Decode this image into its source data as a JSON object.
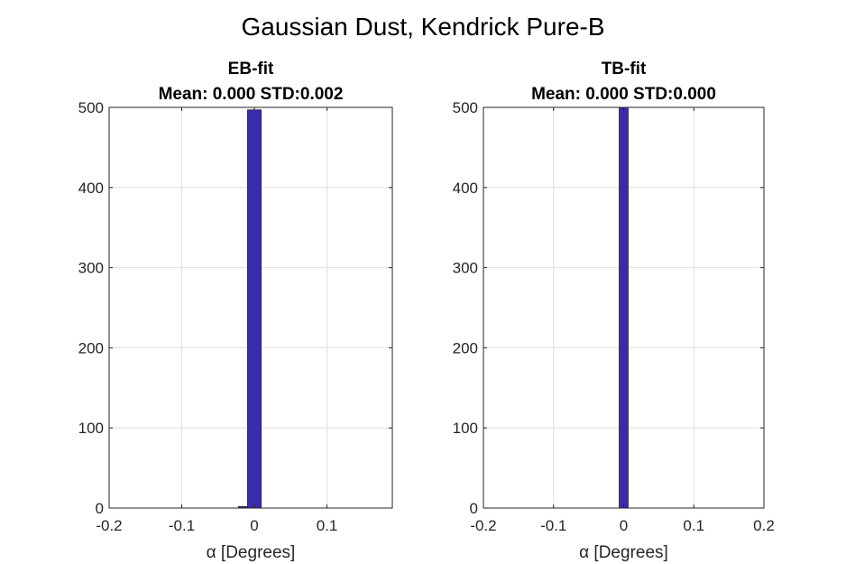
{
  "figure": {
    "suptitle": "Gaussian Dust, Kendrick Pure-B"
  },
  "chart_data": [
    {
      "type": "bar",
      "title": "EB-fit",
      "subtitle": "Mean: 0.000 STD:0.002",
      "xlabel": "α [Degrees]",
      "ylabel": "",
      "xlim": [
        -0.2,
        0.19
      ],
      "ylim": [
        0,
        500
      ],
      "xticks": [
        -0.2,
        -0.1,
        0,
        0.1
      ],
      "xtick_labels": [
        "-0.2",
        "-0.1",
        "0",
        "0.1"
      ],
      "yticks": [
        0,
        100,
        200,
        300,
        400,
        500
      ],
      "ytick_labels": [
        "0",
        "100",
        "200",
        "300",
        "400",
        "500"
      ],
      "bins": [
        {
          "x0": -0.022,
          "x1": -0.0095,
          "value": 2
        },
        {
          "x0": -0.0095,
          "x1": 0.0095,
          "value": 497
        }
      ],
      "bar_color": "#3a2ba8",
      "grid": true
    },
    {
      "type": "bar",
      "title": "TB-fit",
      "subtitle": "Mean: 0.000 STD:0.000",
      "xlabel": "α [Degrees]",
      "ylabel": "",
      "xlim": [
        -0.2,
        0.2
      ],
      "ylim": [
        0,
        500
      ],
      "xticks": [
        -0.2,
        -0.1,
        0,
        0.1,
        0.2
      ],
      "xtick_labels": [
        "-0.2",
        "-0.1",
        "0",
        "0.1",
        "0.2"
      ],
      "yticks": [
        0,
        100,
        200,
        300,
        400,
        500
      ],
      "ytick_labels": [
        "0",
        "100",
        "200",
        "300",
        "400",
        "500"
      ],
      "bins": [
        {
          "x0": -0.0065,
          "x1": 0.0065,
          "value": 500
        }
      ],
      "bar_color": "#3a2ba8",
      "grid": true
    }
  ]
}
